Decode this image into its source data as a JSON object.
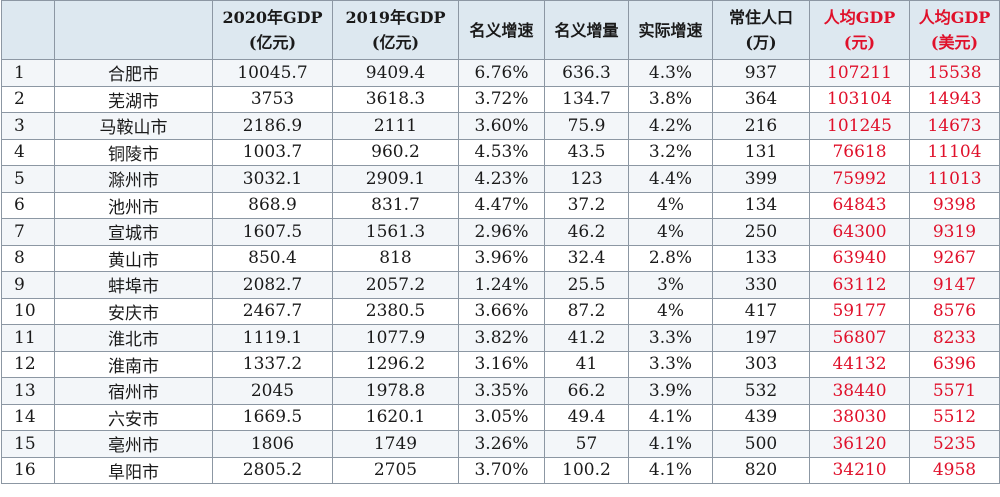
{
  "headers": [
    {
      "line1": "",
      "line2": ""
    },
    {
      "line1": "",
      "line2": ""
    },
    {
      "line1": "2020年GDP",
      "line2": "(亿元)"
    },
    {
      "line1": "2019年GDP",
      "line2": "(亿元)"
    },
    {
      "line1": "名义增速",
      "line2": ""
    },
    {
      "line1": "名义增量",
      "line2": ""
    },
    {
      "line1": "实际增速",
      "line2": ""
    },
    {
      "line1": "常住人口",
      "line2": "(万)"
    },
    {
      "line1": "人均GDP",
      "line2": "(元)"
    },
    {
      "line1": "人均GDP",
      "line2": "(美元)"
    }
  ],
  "rows": [
    [
      "1",
      "合肥市",
      "10045.7",
      "9409.4",
      "6.76%",
      "636.3",
      "4.3%",
      "937",
      "107211",
      "15538"
    ],
    [
      "2",
      "芜湖市",
      "3753",
      "3618.3",
      "3.72%",
      "134.7",
      "3.8%",
      "364",
      "103104",
      "14943"
    ],
    [
      "3",
      "马鞍山市",
      "2186.9",
      "2111",
      "3.60%",
      "75.9",
      "4.2%",
      "216",
      "101245",
      "14673"
    ],
    [
      "4",
      "铜陵市",
      "1003.7",
      "960.2",
      "4.53%",
      "43.5",
      "3.2%",
      "131",
      "76618",
      "11104"
    ],
    [
      "5",
      "滁州市",
      "3032.1",
      "2909.1",
      "4.23%",
      "123",
      "4.4%",
      "399",
      "75992",
      "11013"
    ],
    [
      "6",
      "池州市",
      "868.9",
      "831.7",
      "4.47%",
      "37.2",
      "4%",
      "134",
      "64843",
      "9398"
    ],
    [
      "7",
      "宣城市",
      "1607.5",
      "1561.3",
      "2.96%",
      "46.2",
      "4%",
      "250",
      "64300",
      "9319"
    ],
    [
      "8",
      "黄山市",
      "850.4",
      "818",
      "3.96%",
      "32.4",
      "2.8%",
      "133",
      "63940",
      "9267"
    ],
    [
      "9",
      "蚌埠市",
      "2082.7",
      "2057.2",
      "1.24%",
      "25.5",
      "3%",
      "330",
      "63112",
      "9147"
    ],
    [
      "10",
      "安庆市",
      "2467.7",
      "2380.5",
      "3.66%",
      "87.2",
      "4%",
      "417",
      "59177",
      "8576"
    ],
    [
      "11",
      "淮北市",
      "1119.1",
      "1077.9",
      "3.82%",
      "41.2",
      "3.3%",
      "197",
      "56807",
      "8233"
    ],
    [
      "12",
      "淮南市",
      "1337.2",
      "1296.2",
      "3.16%",
      "41",
      "3.3%",
      "303",
      "44132",
      "6396"
    ],
    [
      "13",
      "宿州市",
      "2045",
      "1978.8",
      "3.35%",
      "66.2",
      "3.9%",
      "532",
      "38440",
      "5571"
    ],
    [
      "14",
      "六安市",
      "1669.5",
      "1620.1",
      "3.05%",
      "49.4",
      "4.1%",
      "439",
      "38030",
      "5512"
    ],
    [
      "15",
      "亳州市",
      "1806",
      "1749",
      "3.26%",
      "57",
      "4.1%",
      "500",
      "36120",
      "5235"
    ],
    [
      "16",
      "阜阳市",
      "2805.2",
      "2705",
      "3.70%",
      "100.2",
      "4.1%",
      "820",
      "34210",
      "4958"
    ]
  ],
  "colors": {
    "header_bg": "#dde8f0",
    "highlight_text": "#e0102a",
    "grid_line": "#8c97a3"
  }
}
